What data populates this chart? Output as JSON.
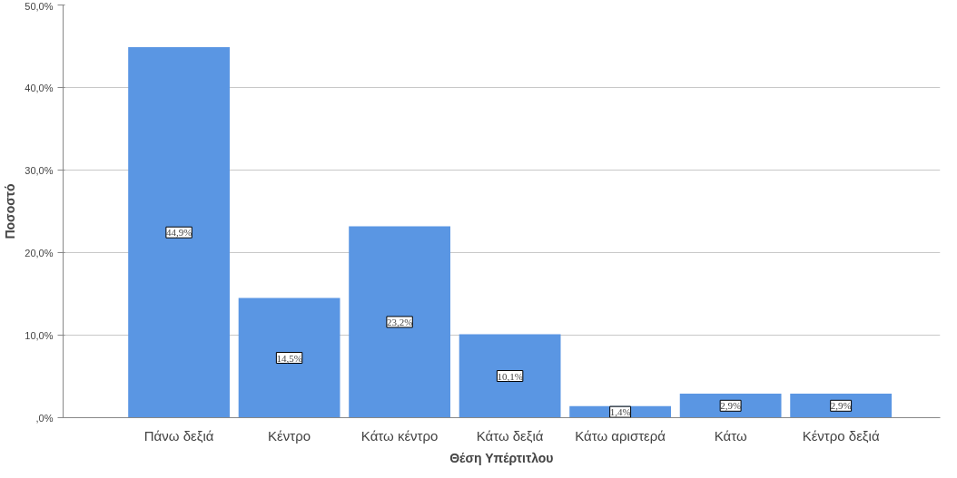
{
  "chart_data": {
    "type": "bar",
    "xlabel": "Θέση Υπέρτιτλου",
    "ylabel": "Ποσοστό",
    "categories": [
      "Πάνω δεξιά",
      "Κέντρο",
      "Κάτω κέντρο",
      "Κάτω δεξιά",
      "Κάτω αριστερά",
      "Κάτω",
      "Κέντρο δεξιά"
    ],
    "values": [
      44.9,
      14.5,
      23.2,
      10.1,
      1.4,
      2.9,
      2.9
    ],
    "value_labels": [
      "44,9%",
      "14,5%",
      "23,2%",
      "10,1%",
      "1,4%",
      "2,9%",
      "2,9%"
    ],
    "color": "#5a96e3",
    "ylim": [
      0,
      50
    ],
    "yticks": [
      {
        "value": 0,
        "label": ",0%"
      },
      {
        "value": 10,
        "label": "10,0%"
      },
      {
        "value": 20,
        "label": "20,0%"
      },
      {
        "value": 30,
        "label": "30,0%"
      },
      {
        "value": 40,
        "label": "40,0%"
      },
      {
        "value": 50,
        "label": "50,0%"
      }
    ],
    "grid": "y"
  }
}
